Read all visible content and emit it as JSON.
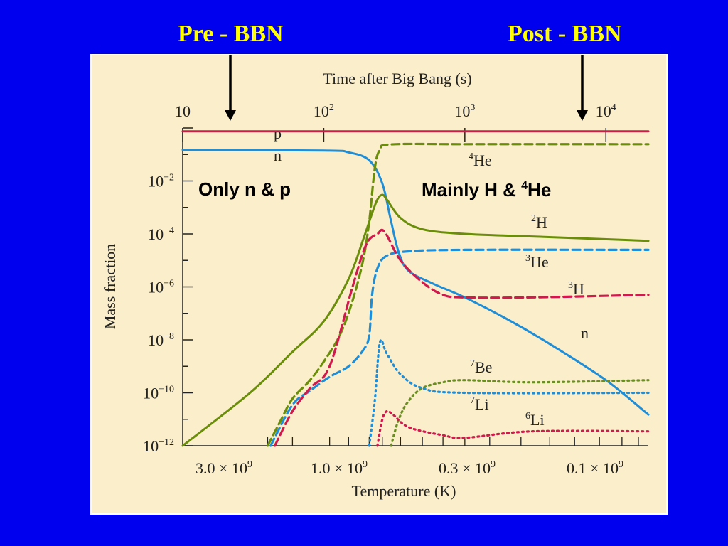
{
  "slide": {
    "pre_label": "Pre - BBN",
    "post_label": "Post - BBN"
  },
  "colors": {
    "background": "#0000ee",
    "label": "#ffff00",
    "panel": "#fbeecb",
    "green": "#6b8e0a",
    "blue": "#1f8ed8",
    "red": "#d01a4e",
    "olive": "#6b8e23"
  },
  "chart_data": {
    "type": "line",
    "title": "",
    "top_axis": {
      "label": "Time after Big Bang (s)",
      "ticks": [
        {
          "base": "10",
          "exp": ""
        },
        {
          "base": "10",
          "exp": "2"
        },
        {
          "base": "10",
          "exp": "3"
        },
        {
          "base": "10",
          "exp": "4"
        }
      ]
    },
    "x_axis": {
      "label": "Temperature (K)",
      "scale": "log, decreasing",
      "ticks": [
        {
          "mant": "3.0",
          "exp": "9"
        },
        {
          "mant": "1.0",
          "exp": "9"
        },
        {
          "mant": "0.3",
          "exp": "9"
        },
        {
          "mant": "0.1",
          "exp": "9"
        }
      ]
    },
    "y_axis": {
      "label": "Mass fraction",
      "scale": "log",
      "ticks": [
        {
          "base": "10",
          "exp": "−2"
        },
        {
          "base": "10",
          "exp": "−4"
        },
        {
          "base": "10",
          "exp": "−6"
        },
        {
          "base": "10",
          "exp": "−8"
        },
        {
          "base": "10",
          "exp": "−10"
        },
        {
          "base": "10",
          "exp": "−12"
        }
      ]
    },
    "annotations": {
      "only": "Only  n  &  p",
      "mainly_prefix": "Mainly  H  &  ",
      "mainly_sup": "4",
      "mainly_suffix": "He"
    },
    "series": [
      {
        "label": "p",
        "sup": "",
        "color": "#d01a4e",
        "style": "solid",
        "points": [
          [
            10,
            0.75
          ],
          [
            100,
            0.75
          ],
          [
            1000,
            0.75
          ],
          [
            20000,
            0.75
          ]
        ]
      },
      {
        "label": "n",
        "sup": "",
        "color": "#1f8ed8",
        "style": "solid",
        "points": [
          [
            10,
            0.15
          ],
          [
            100,
            0.14
          ],
          [
            150,
            0.12
          ],
          [
            210,
            0.06
          ],
          [
            260,
            0.008
          ],
          [
            300,
            0.0003
          ],
          [
            340,
            2e-05
          ],
          [
            400,
            4e-06
          ],
          [
            600,
            1.3e-06
          ],
          [
            1000,
            4e-07
          ],
          [
            2000,
            6e-08
          ],
          [
            4000,
            7e-09
          ],
          [
            10000,
            3e-10
          ],
          [
            20000,
            1.5e-11
          ]
        ]
      },
      {
        "label": "He",
        "sup": "4",
        "color": "#6b8e0a",
        "style": "dashed",
        "points": [
          [
            40,
            1e-12
          ],
          [
            50,
            1e-11
          ],
          [
            60,
            6e-11
          ],
          [
            80,
            3e-10
          ],
          [
            100,
            1.5e-09
          ],
          [
            130,
            1.5e-08
          ],
          [
            160,
            3e-07
          ],
          [
            190,
            1e-05
          ],
          [
            210,
            0.0003
          ],
          [
            230,
            0.03
          ],
          [
            250,
            0.15
          ],
          [
            300,
            0.24
          ],
          [
            1000,
            0.245
          ],
          [
            20000,
            0.245
          ]
        ]
      },
      {
        "label": "H",
        "sup": "2",
        "color": "#6b8e0a",
        "style": "solid",
        "points": [
          [
            10,
            1e-12
          ],
          [
            30,
            1e-10
          ],
          [
            60,
            3.5e-09
          ],
          [
            100,
            5e-08
          ],
          [
            150,
            2e-06
          ],
          [
            190,
            6e-05
          ],
          [
            220,
            0.0006
          ],
          [
            240,
            0.002
          ],
          [
            260,
            0.003
          ],
          [
            280,
            0.002
          ],
          [
            350,
            0.0004
          ],
          [
            500,
            0.00015
          ],
          [
            1000,
            0.0001
          ],
          [
            3000,
            8e-05
          ],
          [
            20000,
            5.5e-05
          ]
        ]
      },
      {
        "label": "He",
        "sup": "3",
        "color": "#1f8ed8",
        "style": "dashed",
        "points": [
          [
            42,
            1e-12
          ],
          [
            60,
            3.5e-11
          ],
          [
            80,
            1.2e-10
          ],
          [
            110,
            4e-10
          ],
          [
            150,
            1e-09
          ],
          [
            190,
            4e-09
          ],
          [
            210,
            1.5e-08
          ],
          [
            220,
            5e-07
          ],
          [
            240,
            5e-06
          ],
          [
            280,
            1.5e-05
          ],
          [
            400,
            2.2e-05
          ],
          [
            1000,
            2.5e-05
          ],
          [
            20000,
            2.5e-05
          ]
        ]
      },
      {
        "label": "H",
        "sup": "3",
        "color": "#d01a4e",
        "style": "dashed",
        "points": [
          [
            45,
            1e-12
          ],
          [
            60,
            2e-11
          ],
          [
            80,
            1.5e-10
          ],
          [
            110,
            1e-09
          ],
          [
            160,
            1e-06
          ],
          [
            200,
            4e-05
          ],
          [
            240,
            0.0001
          ],
          [
            270,
            0.00012
          ],
          [
            350,
            1e-05
          ],
          [
            500,
            1.5e-06
          ],
          [
            700,
            5e-07
          ],
          [
            1000,
            4e-07
          ],
          [
            3000,
            4e-07
          ],
          [
            20000,
            5e-07
          ]
        ]
      },
      {
        "label": "Be",
        "sup": "7",
        "color": "#6b8e23",
        "style": "dotted",
        "points": [
          [
            300,
            1e-12
          ],
          [
            340,
            1e-11
          ],
          [
            400,
            5e-11
          ],
          [
            500,
            1.5e-10
          ],
          [
            700,
            2.5e-10
          ],
          [
            1000,
            3e-10
          ],
          [
            3000,
            2.5e-10
          ],
          [
            20000,
            3e-10
          ]
        ]
      },
      {
        "label": "Li",
        "sup": "7",
        "color": "#1f8ed8",
        "style": "dotted",
        "points": [
          [
            210,
            1e-12
          ],
          [
            230,
            5e-11
          ],
          [
            250,
            8e-09
          ],
          [
            280,
            3e-09
          ],
          [
            350,
            5e-10
          ],
          [
            500,
            1.5e-10
          ],
          [
            1000,
            1e-10
          ],
          [
            20000,
            1e-10
          ]
        ]
      },
      {
        "label": "Li",
        "sup": "6",
        "color": "#d01a4e",
        "style": "dotted",
        "points": [
          [
            240,
            1e-12
          ],
          [
            260,
            1e-11
          ],
          [
            280,
            2e-11
          ],
          [
            310,
            1.5e-11
          ],
          [
            400,
            5e-12
          ],
          [
            700,
            2.5e-12
          ],
          [
            1000,
            2e-12
          ],
          [
            3000,
            3.5e-12
          ],
          [
            20000,
            3.5e-12
          ]
        ]
      }
    ]
  }
}
